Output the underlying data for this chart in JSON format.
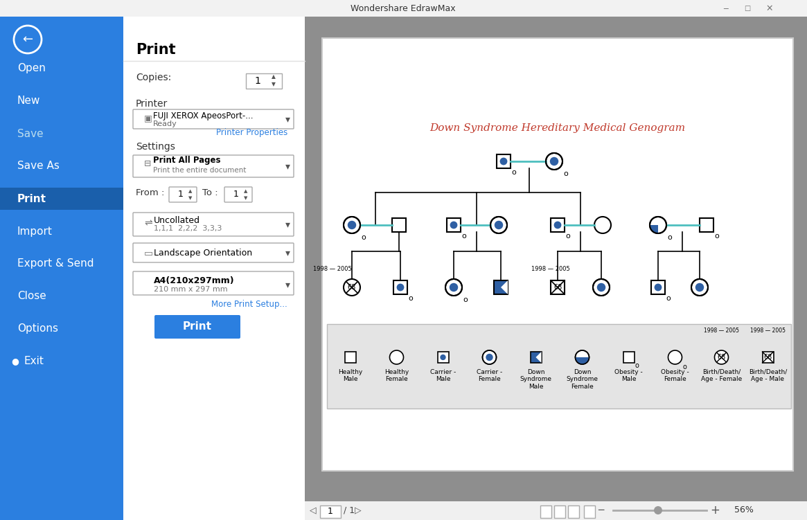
{
  "title": "Wondershare EdrawMax",
  "sidebar_color": "#2B7FE0",
  "sidebar_selected_color": "#1A5FAB",
  "sidebar_items": [
    "Open",
    "New",
    "Save",
    "Save As",
    "Print",
    "Import",
    "Export & Send",
    "Close",
    "Options",
    "Exit"
  ],
  "sidebar_selected": "Print",
  "genogram_title": "Down Syndrome Hereditary Medical Genogram",
  "genogram_title_color": "#C0392B",
  "blue_fill": "#2E5FA3",
  "connect_line_color": "#4DBFBF",
  "black_line": "#000000",
  "print_settings": {
    "printer_name": "FUJI XEROX ApeosPort-...",
    "printer_status": "Ready",
    "printer_props": "Printer Properties",
    "print_all": "Print All Pages",
    "print_all_sub": "Print the entire document",
    "from_label": "From :",
    "to_label": "To :",
    "collate": "Uncollated",
    "collate_sub": "1,1,1  2,2,2  3,3,3",
    "orientation": "Landscape Orientation",
    "paper": "A4(210x297mm)",
    "paper_sub": "210 mm x 297 mm",
    "more_setup": "More Print Setup...",
    "print_btn": "Print"
  },
  "bottom_bar": {
    "zoom_pct": "56%"
  }
}
